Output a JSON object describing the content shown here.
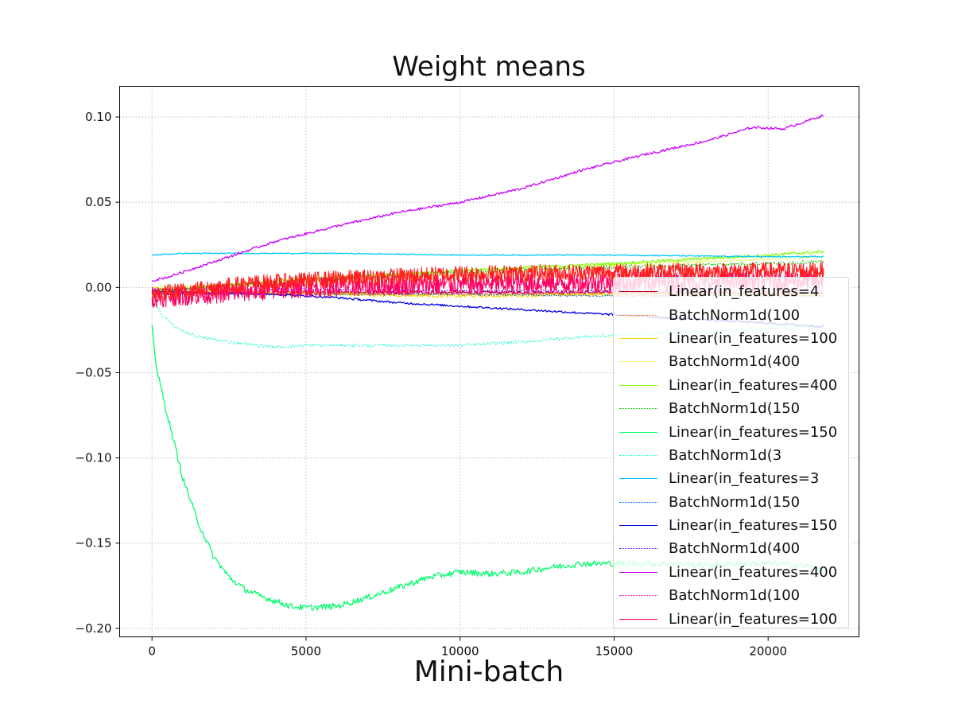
{
  "chart_data": {
    "type": "line",
    "title": "Weight means",
    "xlabel": "Mini-batch",
    "ylabel": "",
    "xlim": [
      -1050,
      22950
    ],
    "ylim": [
      -0.205,
      0.118
    ],
    "xticks": [
      0,
      5000,
      10000,
      15000,
      20000
    ],
    "xtick_labels": [
      "0",
      "5000",
      "10000",
      "15000",
      "20000"
    ],
    "yticks": [
      0.1,
      0.05,
      0.0,
      -0.05,
      -0.1,
      -0.15,
      -0.2
    ],
    "ytick_labels": [
      "0.10",
      "0.05",
      "0.00",
      "−0.05",
      "−0.10",
      "−0.15",
      "−0.20"
    ],
    "grid": true,
    "legend_position": "lower-right",
    "series": [
      {
        "name": "Linear(in_features=4",
        "color": "#b00000",
        "style": "solid",
        "x": [
          0,
          2000,
          5000,
          10000,
          15000,
          21800
        ],
        "y": [
          -0.004,
          -0.003,
          -0.003,
          -0.003,
          -0.003,
          -0.004
        ],
        "noise": 0.001
      },
      {
        "name": "BatchNorm1d(100",
        "color": "#ff7f0e",
        "style": "dotted",
        "x": [
          0,
          5000,
          10000,
          15000,
          21800
        ],
        "y": [
          -0.003,
          -0.003,
          -0.004,
          -0.004,
          -0.004
        ],
        "noise": 0.0008
      },
      {
        "name": "Linear(in_features=100",
        "color": "#ffd400",
        "style": "solid",
        "x": [
          0,
          3000,
          6000,
          10000,
          15000,
          21800
        ],
        "y": [
          -0.002,
          -0.003,
          -0.004,
          -0.005,
          -0.004,
          -0.004
        ],
        "noise": 0.001
      },
      {
        "name": "BatchNorm1d(400",
        "color": "#d4ff00",
        "style": "dotted",
        "x": [
          0,
          5000,
          10000,
          15000,
          21800
        ],
        "y": [
          0.0,
          0.003,
          0.008,
          0.013,
          0.018
        ],
        "noise": 0.001
      },
      {
        "name": "Linear(in_features=400",
        "color": "#7fff00",
        "style": "solid",
        "x": [
          0,
          2000,
          5000,
          10000,
          15000,
          20000,
          21800
        ],
        "y": [
          -0.003,
          0.001,
          0.005,
          0.01,
          0.014,
          0.019,
          0.021
        ],
        "noise": 0.0008
      },
      {
        "name": "BatchNorm1d(150",
        "color": "#00c800",
        "style": "dotted",
        "x": [
          0,
          5000,
          10000,
          15000,
          21800
        ],
        "y": [
          -0.002,
          0.004,
          0.009,
          0.012,
          0.015
        ],
        "noise": 0.001
      },
      {
        "name": "Linear(in_features=150",
        "color": "#00ff6a",
        "style": "solid",
        "x": [
          0,
          150,
          500,
          1000,
          1500,
          2000,
          2500,
          3000,
          3500,
          4000,
          4500,
          5000,
          6000,
          7000,
          8000,
          9000,
          10000,
          11000,
          12000,
          13000,
          14000,
          15000,
          16000,
          17000,
          18000,
          19000,
          20000,
          21000,
          21800
        ],
        "y": [
          -0.022,
          -0.048,
          -0.075,
          -0.112,
          -0.138,
          -0.158,
          -0.17,
          -0.177,
          -0.181,
          -0.184,
          -0.187,
          -0.188,
          -0.187,
          -0.182,
          -0.176,
          -0.17,
          -0.167,
          -0.168,
          -0.167,
          -0.164,
          -0.162,
          -0.162,
          -0.162,
          -0.162,
          -0.163,
          -0.162,
          -0.162,
          -0.163,
          -0.165
        ],
        "noise": 0.0018
      },
      {
        "name": "BatchNorm1d(3",
        "color": "#00ffc8",
        "style": "dotted",
        "x": [
          0,
          300,
          800,
          1500,
          2500,
          3500,
          4000,
          5000,
          7000,
          9000,
          10000,
          12000,
          14000,
          16000,
          18000,
          20000,
          21800
        ],
        "y": [
          -0.004,
          -0.016,
          -0.024,
          -0.029,
          -0.032,
          -0.034,
          -0.035,
          -0.034,
          -0.034,
          -0.034,
          -0.034,
          -0.032,
          -0.029,
          -0.027,
          -0.026,
          -0.024,
          -0.023
        ],
        "noise": 0.0008
      },
      {
        "name": "Linear(in_features=3",
        "color": "#00c8ff",
        "style": "solid",
        "x": [
          0,
          1000,
          3000,
          6000,
          10000,
          15000,
          20000,
          21800
        ],
        "y": [
          0.019,
          0.02,
          0.02,
          0.02,
          0.019,
          0.019,
          0.018,
          0.018
        ],
        "noise": 0.0003
      },
      {
        "name": "BatchNorm1d(150",
        "color": "#0064ff",
        "style": "dotted",
        "x": [
          0,
          5000,
          10000,
          15000,
          21800
        ],
        "y": [
          -0.004,
          -0.004,
          -0.004,
          -0.005,
          -0.005
        ],
        "noise": 0.0005
      },
      {
        "name": "Linear(in_features=150",
        "color": "#0000e6",
        "style": "solid",
        "x": [
          0,
          2000,
          4000,
          6000,
          8000,
          10000,
          12000,
          14000,
          16000,
          18000,
          20000,
          21800
        ],
        "y": [
          -0.002,
          -0.003,
          -0.004,
          -0.006,
          -0.009,
          -0.011,
          -0.013,
          -0.015,
          -0.017,
          -0.019,
          -0.021,
          -0.023
        ],
        "noise": 0.0006
      },
      {
        "name": "BatchNorm1d(400",
        "color": "#6400ff",
        "style": "dotted",
        "x": [
          0,
          5000,
          10000,
          15000,
          21800
        ],
        "y": [
          -0.001,
          -0.001,
          -0.002,
          -0.002,
          -0.002
        ],
        "noise": 0.0004
      },
      {
        "name": "Linear(in_features=400",
        "color": "#c800ff",
        "style": "solid",
        "x": [
          0,
          500,
          2000,
          4000,
          6000,
          8000,
          10000,
          12000,
          14000,
          16000,
          18000,
          19500,
          20500,
          21800
        ],
        "y": [
          0.004,
          0.006,
          0.015,
          0.027,
          0.036,
          0.044,
          0.05,
          0.058,
          0.069,
          0.078,
          0.086,
          0.094,
          0.093,
          0.101
        ],
        "noise": 0.0007
      },
      {
        "name": "BatchNorm1d(100",
        "color": "#ff00c8",
        "style": "dotted",
        "x": [
          0,
          5000,
          10000,
          15000,
          21800
        ],
        "y": [
          -0.003,
          -0.002,
          -0.003,
          -0.003,
          -0.003
        ],
        "noise": 0.0006
      },
      {
        "name": "Linear(in_features=100",
        "color": "#ff0064",
        "style": "solid",
        "x": [
          0,
          5000,
          10000,
          15000,
          21800
        ],
        "y": [
          -0.006,
          0.0,
          0.002,
          0.003,
          0.004
        ],
        "noise": 0.006
      },
      {
        "name": "",
        "color": "#ff1e1e",
        "style": "solid",
        "x": [
          0,
          3000,
          6000,
          10000,
          15000,
          21800
        ],
        "y": [
          -0.004,
          0.002,
          0.005,
          0.008,
          0.009,
          0.01
        ],
        "noise": 0.005
      }
    ]
  }
}
